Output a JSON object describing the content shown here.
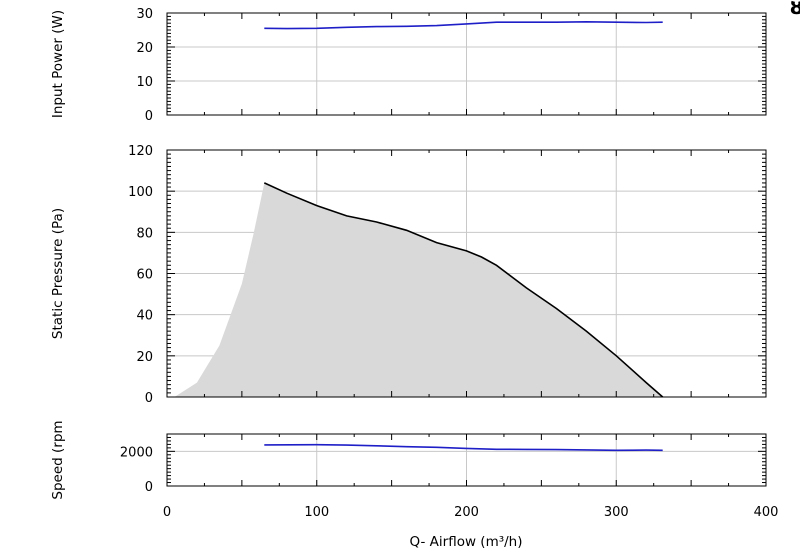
{
  "chart_data": [
    {
      "id": "power",
      "type": "line",
      "ylabel": "Input Power (W)",
      "ylim": [
        0,
        30
      ],
      "yticks": [
        0,
        10,
        20,
        30
      ],
      "xlim": [
        0,
        400
      ],
      "grid": true,
      "series": [
        {
          "color": "#1f1fc8",
          "x": [
            65,
            80,
            100,
            120,
            140,
            160,
            180,
            200,
            220,
            240,
            260,
            280,
            300,
            320,
            331
          ],
          "y": [
            25.5,
            25.4,
            25.5,
            25.8,
            26.0,
            26.1,
            26.3,
            26.8,
            27.3,
            27.3,
            27.3,
            27.4,
            27.3,
            27.2,
            27.3
          ]
        }
      ]
    },
    {
      "id": "pressure",
      "type": "area",
      "ylabel": "Static Pressure (Pa)",
      "ylim": [
        0,
        120
      ],
      "yticks": [
        0,
        20,
        40,
        60,
        80,
        100,
        120
      ],
      "xlim": [
        0,
        400
      ],
      "grid": true,
      "fill_color": "#d9d9d9",
      "series": [
        {
          "color": "#000000",
          "x": [
            65,
            80,
            100,
            120,
            140,
            160,
            180,
            200,
            210,
            220,
            240,
            260,
            280,
            300,
            320,
            331
          ],
          "y": [
            104,
            99,
            93,
            88,
            85,
            81,
            75,
            71,
            68,
            64,
            53,
            43,
            32,
            20,
            7,
            0
          ]
        }
      ],
      "envelope": {
        "x": [
          5,
          20,
          35,
          50,
          58,
          65
        ],
        "y": [
          0,
          7,
          25,
          55,
          80,
          104
        ]
      }
    },
    {
      "id": "speed",
      "type": "line",
      "ylabel": "Speed (rpm",
      "xlabel": "Q- Airflow (m³/h)",
      "ylim": [
        0,
        3000
      ],
      "yticks": [
        0,
        2000
      ],
      "xlim": [
        0,
        400
      ],
      "xticks": [
        0,
        100,
        200,
        300,
        400
      ],
      "grid": true,
      "series": [
        {
          "color": "#1f1fc8",
          "x": [
            65,
            100,
            120,
            140,
            160,
            180,
            200,
            220,
            240,
            260,
            280,
            300,
            320,
            331
          ],
          "y": [
            2370,
            2380,
            2360,
            2320,
            2270,
            2230,
            2170,
            2120,
            2110,
            2100,
            2080,
            2060,
            2070,
            2060
          ]
        }
      ]
    }
  ],
  "corner_mark": "ȣ"
}
